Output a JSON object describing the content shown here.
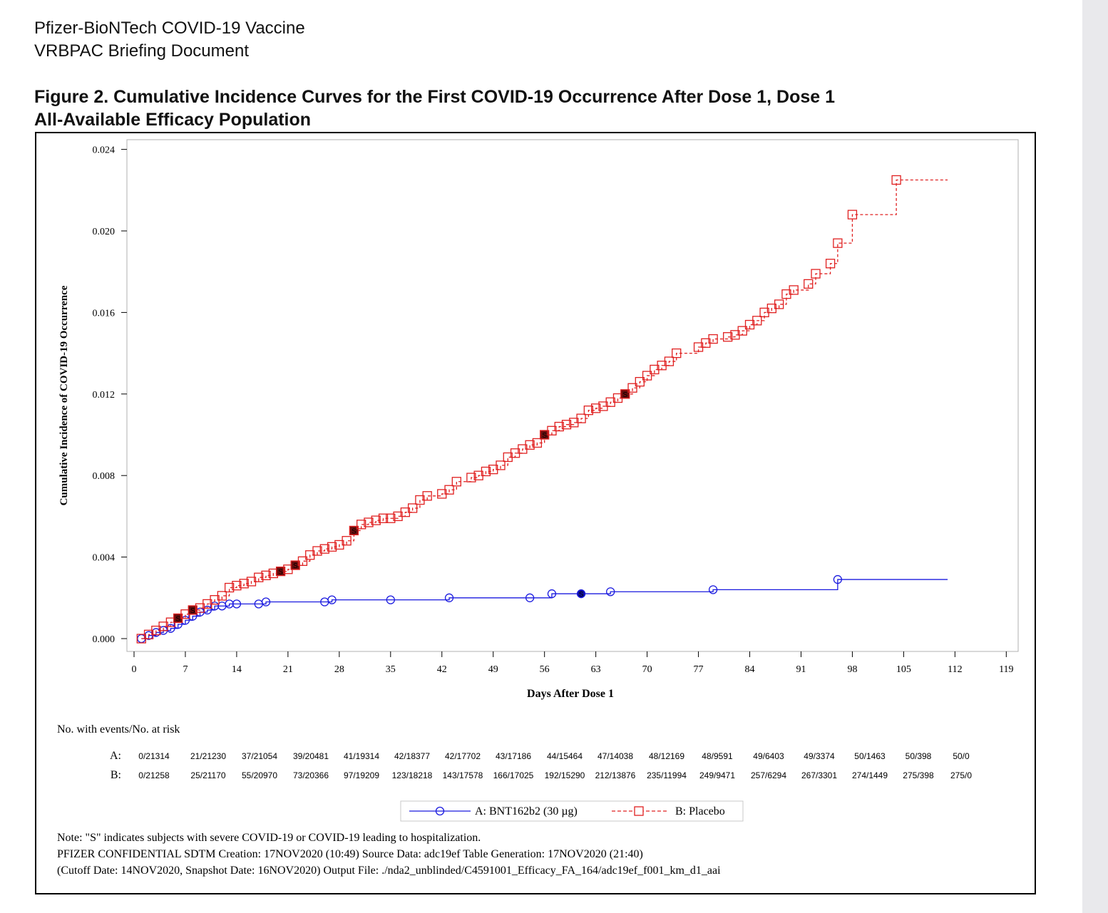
{
  "document": {
    "header_line1": "Pfizer-BioNTech COVID-19 Vaccine",
    "header_line2": "VRBPAC Briefing Document",
    "figure_title_line1": "Figure 2. Cumulative Incidence Curves for the First COVID-19 Occurrence After Dose 1, Dose 1",
    "figure_title_line2": "All-Available Efficacy Population"
  },
  "chart_data": {
    "type": "line",
    "step": true,
    "xlabel": "Days After Dose 1",
    "ylabel": "Cumulative Incidence of COVID-19 Occurrence",
    "xlim": [
      0,
      119
    ],
    "ylim": [
      0,
      0.024
    ],
    "x_ticks": [
      "0",
      "7",
      "14",
      "21",
      "28",
      "35",
      "42",
      "49",
      "56",
      "63",
      "70",
      "77",
      "84",
      "91",
      "98",
      "105",
      "112",
      "119"
    ],
    "y_ticks": [
      "0.000",
      "0.004",
      "0.008",
      "0.012",
      "0.016",
      "0.020",
      "0.024"
    ],
    "grid": false,
    "legend_position": "bottom",
    "series": [
      {
        "name": "A: BNT162b2 (30 µg)",
        "color": "#1a1adf",
        "marker": "circle",
        "line_style": "solid",
        "points": [
          [
            1,
            0
          ],
          [
            2,
            0.00015
          ],
          [
            3,
            0.0003
          ],
          [
            4,
            0.0004
          ],
          [
            5,
            0.0005
          ],
          [
            6,
            0.0007
          ],
          [
            7,
            0.0009
          ],
          [
            8,
            0.0011
          ],
          [
            9,
            0.0013
          ],
          [
            10,
            0.0014
          ],
          [
            11,
            0.0016
          ],
          [
            12,
            0.0016
          ],
          [
            13,
            0.0017
          ],
          [
            14,
            0.0017
          ],
          [
            17,
            0.0017
          ],
          [
            18,
            0.0018
          ],
          [
            26,
            0.0018
          ],
          [
            27,
            0.0019
          ],
          [
            35,
            0.0019
          ],
          [
            43,
            0.002
          ],
          [
            54,
            0.002
          ],
          [
            57,
            0.0022
          ],
          [
            61,
            0.0022
          ],
          [
            65,
            0.0023
          ],
          [
            79,
            0.0024
          ],
          [
            96,
            0.0029
          ],
          [
            111,
            0.0029
          ]
        ],
        "end_x": 111
      },
      {
        "name": "B: Placebo",
        "color": "#e02020",
        "marker": "square",
        "line_style": "dashed",
        "points": [
          [
            1,
            0
          ],
          [
            2,
            0.0002
          ],
          [
            3,
            0.0004
          ],
          [
            4,
            0.0006
          ],
          [
            5,
            0.0008
          ],
          [
            6,
            0.001
          ],
          [
            7,
            0.0012
          ],
          [
            8,
            0.0014
          ],
          [
            9,
            0.0015
          ],
          [
            10,
            0.0017
          ],
          [
            11,
            0.0019
          ],
          [
            12,
            0.0021
          ],
          [
            13,
            0.0025
          ],
          [
            14,
            0.0026
          ],
          [
            15,
            0.0027
          ],
          [
            16,
            0.0028
          ],
          [
            17,
            0.003
          ],
          [
            18,
            0.0031
          ],
          [
            19,
            0.0032
          ],
          [
            20,
            0.0033
          ],
          [
            21,
            0.0034
          ],
          [
            22,
            0.0036
          ],
          [
            23,
            0.0038
          ],
          [
            24,
            0.0041
          ],
          [
            25,
            0.0043
          ],
          [
            26,
            0.0044
          ],
          [
            27,
            0.0045
          ],
          [
            28,
            0.0046
          ],
          [
            29,
            0.0048
          ],
          [
            30,
            0.0053
          ],
          [
            31,
            0.0056
          ],
          [
            32,
            0.0057
          ],
          [
            33,
            0.0058
          ],
          [
            34,
            0.0059
          ],
          [
            35,
            0.0059
          ],
          [
            36,
            0.006
          ],
          [
            37,
            0.0062
          ],
          [
            38,
            0.0064
          ],
          [
            39,
            0.0068
          ],
          [
            40,
            0.007
          ],
          [
            42,
            0.0071
          ],
          [
            43,
            0.0073
          ],
          [
            44,
            0.0077
          ],
          [
            46,
            0.0079
          ],
          [
            47,
            0.008
          ],
          [
            48,
            0.0082
          ],
          [
            49,
            0.0083
          ],
          [
            50,
            0.0085
          ],
          [
            51,
            0.0089
          ],
          [
            52,
            0.0091
          ],
          [
            53,
            0.0093
          ],
          [
            54,
            0.0095
          ],
          [
            55,
            0.0096
          ],
          [
            56,
            0.01
          ],
          [
            57,
            0.0102
          ],
          [
            58,
            0.0104
          ],
          [
            59,
            0.0105
          ],
          [
            60,
            0.0106
          ],
          [
            61,
            0.0108
          ],
          [
            62,
            0.0112
          ],
          [
            63,
            0.0113
          ],
          [
            64,
            0.0114
          ],
          [
            65,
            0.0116
          ],
          [
            66,
            0.0118
          ],
          [
            67,
            0.012
          ],
          [
            68,
            0.0123
          ],
          [
            69,
            0.0126
          ],
          [
            70,
            0.0129
          ],
          [
            71,
            0.0132
          ],
          [
            72,
            0.0134
          ],
          [
            73,
            0.0136
          ],
          [
            74,
            0.014
          ],
          [
            77,
            0.0143
          ],
          [
            78,
            0.0145
          ],
          [
            79,
            0.0147
          ],
          [
            81,
            0.0148
          ],
          [
            82,
            0.0149
          ],
          [
            83,
            0.0151
          ],
          [
            84,
            0.0154
          ],
          [
            85,
            0.0156
          ],
          [
            86,
            0.016
          ],
          [
            87,
            0.0162
          ],
          [
            88,
            0.0164
          ],
          [
            89,
            0.0169
          ],
          [
            90,
            0.0171
          ],
          [
            92,
            0.0174
          ],
          [
            93,
            0.0179
          ],
          [
            95,
            0.0184
          ],
          [
            96,
            0.0194
          ],
          [
            98,
            0.0208
          ],
          [
            104,
            0.0225
          ],
          [
            111,
            0.0225
          ]
        ],
        "end_x": 111
      }
    ],
    "severe_events": {
      "A": [
        61
      ],
      "B": [
        6,
        8,
        20,
        22,
        30,
        56,
        67
      ]
    },
    "severe_marker_label": "S",
    "risk_table": {
      "title": "No. with events/No. at risk",
      "rows": [
        {
          "label": "A:",
          "values": [
            "0/21314",
            "21/21230",
            "37/21054",
            "39/20481",
            "41/19314",
            "42/18377",
            "42/17702",
            "43/17186",
            "44/15464",
            "47/14038",
            "48/12169",
            "48/9591",
            "49/6403",
            "49/3374",
            "50/1463",
            "50/398",
            "50/0"
          ]
        },
        {
          "label": "B:",
          "values": [
            "0/21258",
            "25/21170",
            "55/20970",
            "73/20366",
            "97/19209",
            "123/18218",
            "143/17578",
            "166/17025",
            "192/15290",
            "212/13876",
            "235/11994",
            "249/9471",
            "257/6294",
            "267/3301",
            "274/1449",
            "275/398",
            "275/0"
          ]
        }
      ]
    },
    "footnotes": [
      "Note: \"S\" indicates subjects with severe COVID-19 or COVID-19 leading to hospitalization.",
      "PFIZER CONFIDENTIAL  SDTM Creation: 17NOV2020 (10:49)  Source Data: adc19ef  Table Generation: 17NOV2020 (21:40)",
      "(Cutoff Date: 14NOV2020, Snapshot Date: 16NOV2020) Output File: ./nda2_unblinded/C4591001_Efficacy_FA_164/adc19ef_f001_km_d1_aai"
    ]
  }
}
